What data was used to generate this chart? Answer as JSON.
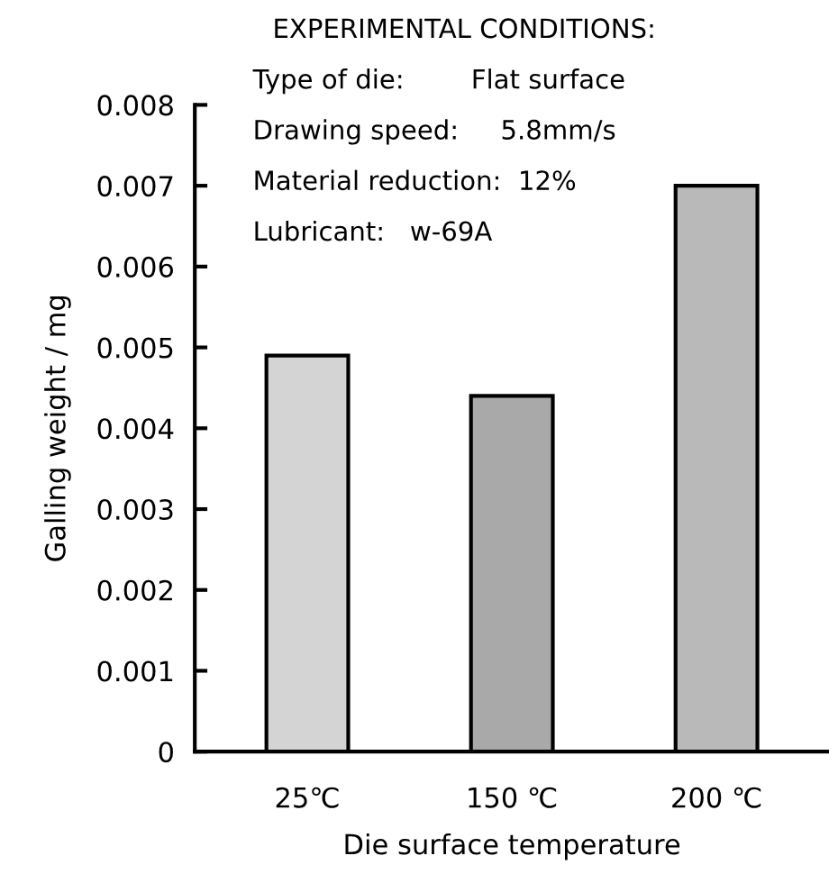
{
  "chart_data": {
    "type": "bar",
    "xlabel": "Die surface temperature",
    "ylabel": "Galling weight / mg",
    "categories": [
      "25℃",
      "150 ℃",
      "200 ℃"
    ],
    "values": [
      0.0049,
      0.0044,
      0.007
    ],
    "colors": [
      "#d4d4d4",
      "#a9a9a9",
      "#b9b9b9"
    ],
    "ylim": [
      0,
      0.008
    ],
    "yticks": [
      0,
      0.001,
      0.002,
      0.003,
      0.004,
      0.005,
      0.006,
      0.007,
      0.008
    ],
    "grid": false,
    "legend": false,
    "annotations": [
      "EXPERIMENTAL CONDITIONS:",
      "Type of die:        Flat surface",
      "Drawing speed:     5.8mm/s",
      "Material reduction:  12%",
      "Lubricant:   w-69A"
    ]
  }
}
